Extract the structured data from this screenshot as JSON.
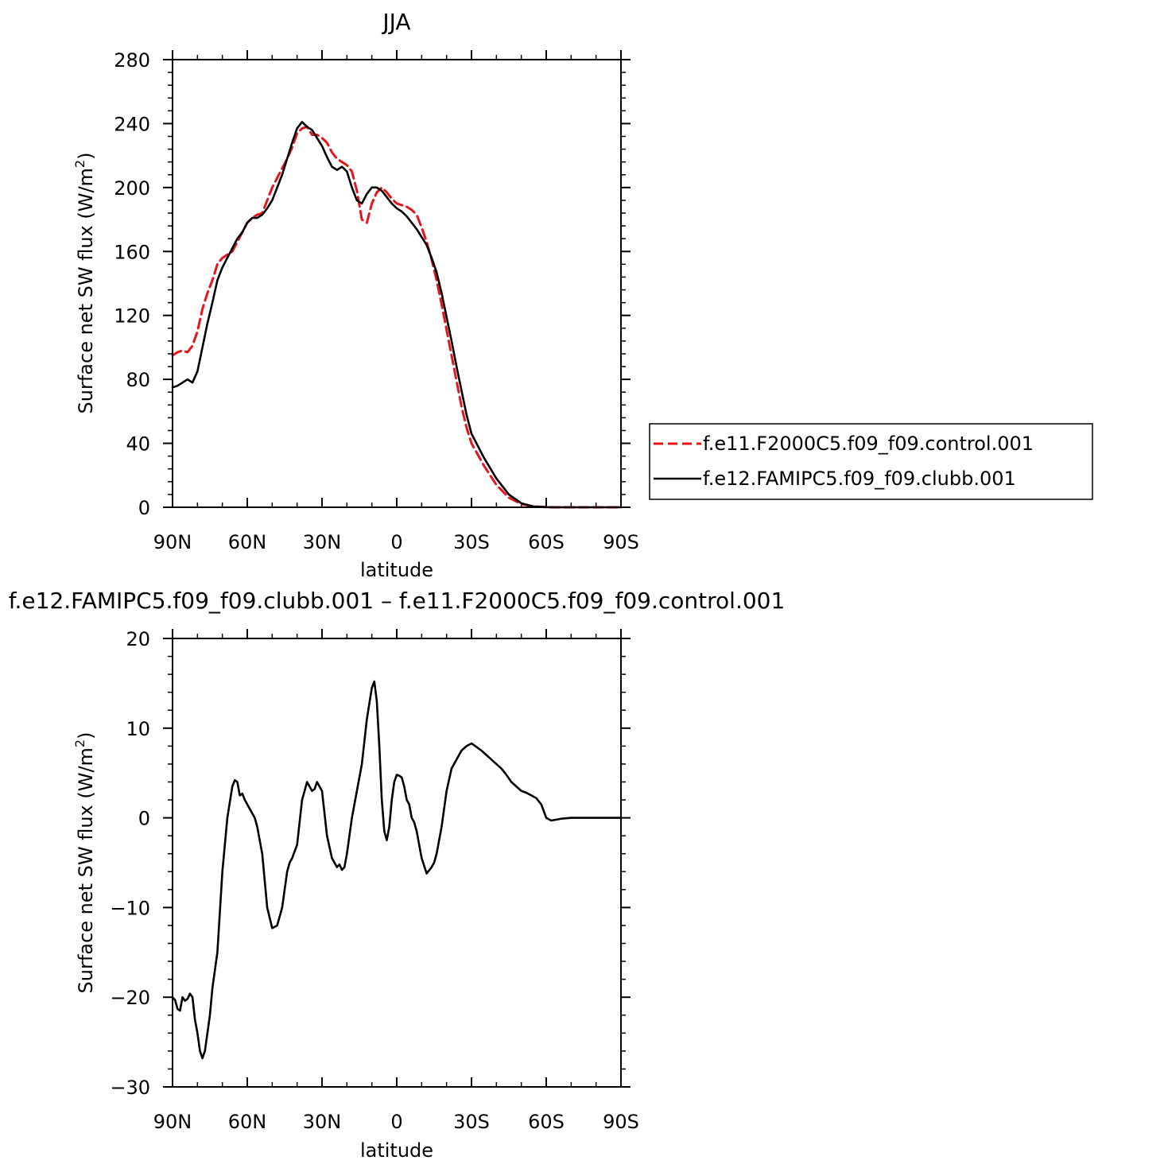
{
  "chart_data": [
    {
      "type": "line",
      "title": "JJA",
      "xlabel": "latitude",
      "ylabel": "Surface net SW flux (W/m²)",
      "ylabel_parts": {
        "pre": "Surface net SW flux (W/m",
        "sup": "2",
        "post": ")"
      },
      "x_tick_labels": [
        "90N",
        "60N",
        "30N",
        "0",
        "30S",
        "60S",
        "90S"
      ],
      "x_tick_values": [
        90,
        60,
        30,
        0,
        -30,
        -60,
        -90
      ],
      "xlim": [
        90,
        -90
      ],
      "ylim": [
        0,
        280
      ],
      "y_ticks": [
        0,
        40,
        80,
        120,
        160,
        200,
        240,
        280
      ],
      "grid": false,
      "legend_placement": "right",
      "series": [
        {
          "name": "f.e11.F2000C5.f09_f09.control.001",
          "color": "#e8141c",
          "dash": "dashed",
          "x": [
            90,
            88,
            86,
            84,
            82,
            80,
            78,
            76,
            74,
            72,
            70,
            68,
            66,
            64,
            62,
            60,
            58,
            56,
            54,
            52,
            50,
            48,
            46,
            44,
            42,
            40,
            38,
            36,
            34,
            32,
            30,
            28,
            26,
            24,
            22,
            20,
            18,
            16,
            14,
            12,
            10,
            8,
            6,
            4,
            2,
            0,
            -2,
            -4,
            -6,
            -8,
            -10,
            -12,
            -14,
            -16,
            -18,
            -20,
            -22,
            -24,
            -26,
            -28,
            -30,
            -35,
            -40,
            -45,
            -50,
            -55,
            -60,
            -63,
            -66,
            -70,
            -75,
            -80,
            -85,
            -90
          ],
          "y": [
            95,
            97,
            98,
            97,
            101,
            110,
            124,
            134,
            142,
            152,
            156,
            158,
            160,
            166,
            172,
            178,
            181,
            183,
            184,
            192,
            200,
            206,
            212,
            218,
            225,
            234,
            237,
            238,
            233,
            233,
            231,
            228,
            222,
            218,
            216,
            214,
            210,
            198,
            180,
            178,
            190,
            197,
            200,
            197,
            193,
            190,
            189,
            188,
            186,
            183,
            175,
            166,
            155,
            142,
            127,
            111,
            95,
            79,
            63,
            50,
            40,
            26,
            14,
            6,
            2,
            0.5,
            0.1,
            0,
            0,
            0,
            0,
            0,
            0,
            0
          ]
        },
        {
          "name": "f.e12.FAMIPC5.f09_f09.clubb.001",
          "color": "#000000",
          "dash": "solid",
          "x": [
            90,
            88,
            86,
            84,
            82,
            80,
            78,
            76,
            74,
            72,
            70,
            68,
            66,
            64,
            62,
            60,
            58,
            56,
            54,
            52,
            50,
            48,
            46,
            44,
            42,
            40,
            38,
            36,
            34,
            32,
            30,
            28,
            26,
            24,
            22,
            20,
            18,
            16,
            14,
            12,
            10,
            8,
            6,
            4,
            2,
            0,
            -2,
            -4,
            -6,
            -8,
            -10,
            -12,
            -14,
            -16,
            -18,
            -20,
            -22,
            -24,
            -26,
            -28,
            -30,
            -35,
            -40,
            -45,
            -50,
            -55,
            -60,
            -63,
            -66,
            -70,
            -75,
            -80,
            -85,
            -90
          ],
          "y": [
            75,
            76,
            78,
            80,
            78,
            85,
            100,
            115,
            128,
            142,
            150,
            156,
            162,
            168,
            172,
            178,
            181,
            181,
            183,
            187,
            192,
            200,
            208,
            218,
            228,
            237,
            241,
            238,
            236,
            231,
            226,
            219,
            213,
            211,
            213,
            210,
            200,
            192,
            190,
            196,
            200,
            200,
            198,
            194,
            190,
            187,
            185,
            182,
            178,
            174,
            169,
            164,
            156,
            147,
            134,
            119,
            104,
            88,
            73,
            58,
            46,
            31,
            18,
            8,
            2.5,
            0.5,
            0.1,
            0,
            0,
            0,
            0,
            0,
            0,
            0
          ]
        }
      ]
    },
    {
      "type": "line",
      "title": "f.e12.FAMIPC5.f09_f09.clubb.001 – f.e11.F2000C5.f09_f09.control.001",
      "xlabel": "latitude",
      "ylabel": "Surface net SW flux (W/m²)",
      "ylabel_parts": {
        "pre": "Surface net SW flux (W/m",
        "sup": "2",
        "post": ")"
      },
      "x_tick_labels": [
        "90N",
        "60N",
        "30N",
        "0",
        "30S",
        "60S",
        "90S"
      ],
      "x_tick_values": [
        90,
        60,
        30,
        0,
        -30,
        -60,
        -90
      ],
      "xlim": [
        90,
        -90
      ],
      "ylim": [
        -30,
        20
      ],
      "y_ticks": [
        -30,
        -20,
        -10,
        0,
        10,
        20
      ],
      "y_tick_labels": [
        "−30",
        "−20",
        "−10",
        "0",
        "10",
        "20"
      ],
      "grid": false,
      "series": [
        {
          "color": "#000000",
          "dash": "solid",
          "x": [
            90,
            89,
            88,
            87,
            86,
            85,
            84,
            83,
            82,
            81,
            80,
            79,
            78,
            77,
            76,
            75,
            74,
            72,
            70,
            68,
            66,
            65,
            64,
            63,
            62,
            61,
            60,
            59,
            58,
            57,
            56,
            54,
            52,
            50,
            48,
            46,
            45,
            44,
            43,
            42,
            40,
            38,
            36,
            35,
            34,
            33,
            32,
            31,
            30,
            28,
            26,
            24,
            23,
            22,
            21,
            20,
            19,
            18,
            16,
            14,
            12,
            10,
            9,
            8,
            7,
            6,
            5,
            4,
            3,
            2,
            1,
            0,
            -1,
            -2,
            -3,
            -4,
            -5,
            -6,
            -7,
            -8,
            -10,
            -12,
            -14,
            -15,
            -16,
            -18,
            -20,
            -22,
            -24,
            -26,
            -28,
            -30,
            -32,
            -34,
            -36,
            -38,
            -40,
            -42,
            -44,
            -46,
            -48,
            -50,
            -52,
            -54,
            -56,
            -58,
            -60,
            -62,
            -64,
            -66,
            -70,
            -75,
            -80,
            -85,
            -90
          ],
          "y": [
            -20,
            -20.3,
            -21.3,
            -21.5,
            -20,
            -20.4,
            -20.2,
            -19.6,
            -20,
            -22.5,
            -24,
            -26,
            -26.8,
            -26,
            -24,
            -22,
            -19,
            -15,
            -6,
            0,
            3.5,
            4.2,
            4,
            2.5,
            2.7,
            2,
            1.5,
            1,
            0.5,
            0,
            -1,
            -4,
            -10,
            -12.3,
            -12,
            -10,
            -8,
            -6,
            -5,
            -4.5,
            -3,
            2,
            4,
            3.5,
            3,
            3.2,
            4,
            3.5,
            3,
            -2,
            -4.5,
            -5.5,
            -5.2,
            -5.8,
            -5.5,
            -4,
            -2,
            0,
            3,
            6,
            11,
            14.5,
            15.2,
            13,
            8,
            2,
            -1.5,
            -2.5,
            -1,
            2,
            4,
            4.8,
            4.7,
            4.5,
            3.5,
            2,
            1.5,
            0,
            -0.5,
            -1.5,
            -4.5,
            -6.2,
            -5.5,
            -5,
            -4,
            -1,
            3,
            5.5,
            6.5,
            7.5,
            8,
            8.3,
            7.9,
            7.5,
            7,
            6.5,
            6,
            5.5,
            4.8,
            4,
            3.5,
            3,
            2.8,
            2.5,
            2.2,
            1.5,
            0,
            -0.3,
            -0.2,
            -0.1,
            0,
            0,
            0,
            0,
            0
          ]
        }
      ]
    }
  ]
}
